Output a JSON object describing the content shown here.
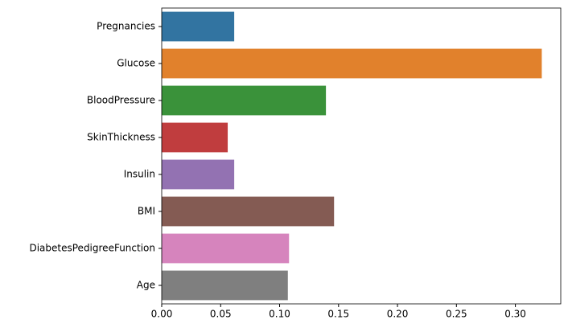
{
  "chart_data": {
    "type": "bar",
    "orientation": "horizontal",
    "categories": [
      "Pregnancies",
      "Glucose",
      "BloodPressure",
      "SkinThickness",
      "Insulin",
      "BMI",
      "DiabetesPedigreeFunction",
      "Age"
    ],
    "values": [
      0.0615,
      0.3224,
      0.1393,
      0.056,
      0.0615,
      0.1462,
      0.108,
      0.107
    ],
    "colors": [
      "#3274a1",
      "#e1812c",
      "#3a923a",
      "#c03d3e",
      "#9372b2",
      "#845b53",
      "#d684bd",
      "#7f7f7f"
    ],
    "xlim": [
      0,
      0.3385
    ],
    "xticks": [
      {
        "value": 0,
        "label": "0.00"
      },
      0.05,
      {
        "value": 0.1,
        "label": "0.10"
      },
      0.15,
      {
        "value": 0.2,
        "label": "0.20"
      },
      0.25,
      {
        "value": 0.3,
        "label": "0.30"
      }
    ]
  }
}
